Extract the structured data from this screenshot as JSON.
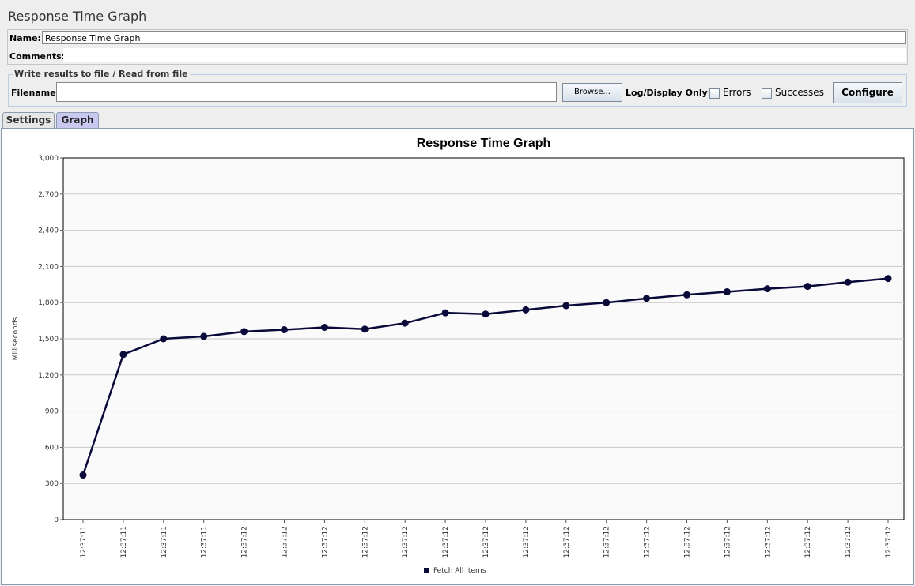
{
  "window": {
    "title": "Response Time Graph"
  },
  "name_panel": {
    "name_label": "Name:",
    "name_value": "Response Time Graph",
    "comments_label": "Comments:"
  },
  "file_panel": {
    "legend": "Write results to file / Read from file",
    "filename_label": "Filename",
    "filename_value": "",
    "browse_label": "Browse...",
    "log_display_label": "Log/Display Only:",
    "errors_label": "Errors",
    "successes_label": "Successes",
    "configure_label": "Configure"
  },
  "tabs": [
    {
      "label": "Settings",
      "active": false
    },
    {
      "label": "Graph",
      "active": true
    }
  ],
  "chart_data": {
    "type": "line",
    "title": "Response Time Graph",
    "ylabel": "Milliseconds",
    "xlabel": "",
    "ylim": [
      0,
      3000
    ],
    "yticks": [
      0,
      300,
      600,
      900,
      1200,
      1500,
      1800,
      2100,
      2400,
      2700,
      3000
    ],
    "ytick_labels": [
      "0",
      "300",
      "600",
      "900",
      "1,200",
      "1,500",
      "1,800",
      "2,100",
      "2,400",
      "2,700",
      "3,000"
    ],
    "categories": [
      "12:37:11",
      "12:37:11",
      "12:37:11",
      "12:37:11",
      "12:37:12",
      "12:37:12",
      "12:37:12",
      "12:37:12",
      "12:37:12",
      "12:37:12",
      "12:37:12",
      "12:37:12",
      "12:37:12",
      "12:37:12",
      "12:37:12",
      "12:37:12",
      "12:37:12",
      "12:37:12",
      "12:37:12",
      "12:37:12",
      "12:37:12"
    ],
    "grid": true,
    "legend_position": "bottom",
    "series": [
      {
        "name": "Fetch All Items",
        "color": "#0a0a3a",
        "values": [
          370,
          1370,
          1500,
          1520,
          1560,
          1575,
          1595,
          1580,
          1630,
          1715,
          1705,
          1740,
          1775,
          1800,
          1835,
          1865,
          1890,
          1915,
          1935,
          1970,
          2000
        ]
      }
    ]
  }
}
